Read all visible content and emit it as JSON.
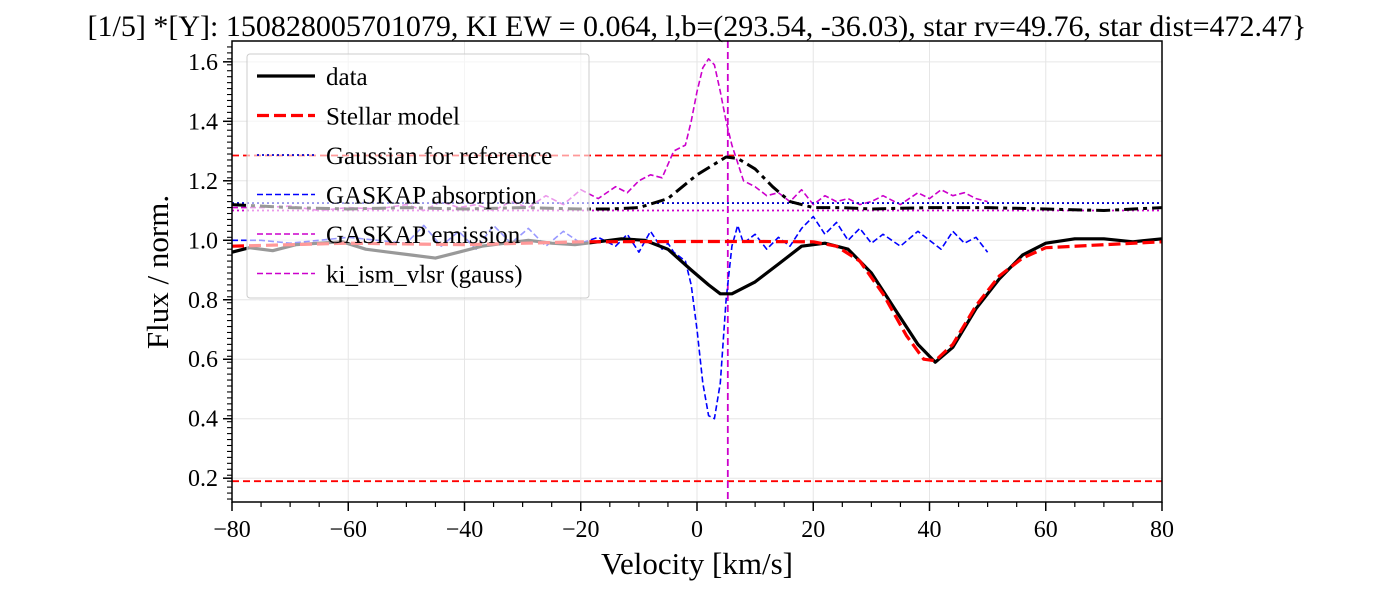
{
  "chart_data": {
    "type": "line",
    "title": "[1/5] *[Y]: 150828005701079, KI EW = 0.064, l,b=(293.54, -36.03), star rv=49.76, star dist=472.47}",
    "xlabel": "Velocity [km/s]",
    "ylabel": "Flux / norm.",
    "xlim": [
      -80,
      80
    ],
    "ylim": [
      0.12,
      1.67
    ],
    "xticks": [
      -80,
      -60,
      -40,
      -20,
      0,
      20,
      40,
      60,
      80
    ],
    "yticks": [
      0.2,
      0.4,
      0.6,
      0.8,
      1.0,
      1.2,
      1.4,
      1.6
    ],
    "xtick_labels": [
      "−80",
      "−60",
      "−40",
      "−20",
      "0",
      "20",
      "40",
      "60",
      "80"
    ],
    "ytick_labels": [
      "0.2",
      "0.4",
      "0.6",
      "0.8",
      "1.0",
      "1.2",
      "1.4",
      "1.6"
    ],
    "grid": true,
    "legend_position": "upper-left",
    "legend": [
      {
        "label": "data",
        "color": "#000000",
        "style": "solid"
      },
      {
        "label": "Stellar model",
        "color": "#ff0000",
        "style": "dashed"
      },
      {
        "label": "Gaussian for reference",
        "color": "#0000cc",
        "style": "dotted"
      },
      {
        "label": "GASKAP absorption",
        "color": "#0000ff",
        "style": "dashed"
      },
      {
        "label": "GASKAP emission",
        "color": "#cc00cc",
        "style": "dashed"
      },
      {
        "label": "ki_ism_vlsr (gauss)",
        "color": "#cc00cc",
        "style": "dashed"
      }
    ],
    "series": [
      {
        "name": "data",
        "color": "#000000",
        "x": [
          -80,
          -77,
          -73,
          -69,
          -65,
          -61,
          -57,
          -53,
          -49,
          -45,
          -41,
          -37,
          -33,
          -29,
          -25,
          -21,
          -17,
          -13,
          -9,
          -5,
          -1,
          2,
          4,
          6,
          10,
          14,
          18,
          22,
          26,
          30,
          34,
          38,
          41,
          44,
          48,
          52,
          56,
          60,
          65,
          70,
          75,
          80
        ],
        "y": [
          0.96,
          0.975,
          0.965,
          0.985,
          0.99,
          0.995,
          0.97,
          0.96,
          0.95,
          0.94,
          0.96,
          0.98,
          0.99,
          1.0,
          0.99,
          0.985,
          0.995,
          1.005,
          1.0,
          0.97,
          0.9,
          0.85,
          0.82,
          0.82,
          0.86,
          0.92,
          0.98,
          0.99,
          0.97,
          0.89,
          0.77,
          0.65,
          0.59,
          0.64,
          0.77,
          0.87,
          0.95,
          0.99,
          1.005,
          1.005,
          0.995,
          1.005
        ]
      },
      {
        "name": "Stellar model",
        "color": "#ff0000",
        "x": [
          -80,
          -60,
          -40,
          -20,
          0,
          10,
          20,
          24,
          28,
          32,
          36,
          39,
          41,
          44,
          48,
          52,
          56,
          60,
          70,
          80
        ],
        "y": [
          0.98,
          0.99,
          0.985,
          0.995,
          0.996,
          0.996,
          0.995,
          0.98,
          0.93,
          0.82,
          0.68,
          0.6,
          0.595,
          0.65,
          0.78,
          0.88,
          0.94,
          0.975,
          0.985,
          0.995
        ]
      },
      {
        "name": "Gaussian for reference",
        "color": "#0000cc",
        "x": [
          -80,
          80
        ],
        "y": [
          1.125,
          1.125
        ]
      },
      {
        "name": "GASKAP absorption",
        "color": "#0000ff",
        "x": [
          -80,
          -75,
          -70,
          -65,
          -60,
          -55,
          -50,
          -47,
          -44,
          -41,
          -38,
          -35,
          -32,
          -29,
          -26,
          -23,
          -20,
          -17,
          -14,
          -12,
          -10,
          -8,
          -6,
          -5,
          -4,
          -2,
          -1,
          0,
          1,
          2,
          3,
          4,
          5,
          6,
          7,
          8,
          10,
          12,
          14,
          16,
          18,
          20,
          22,
          24,
          26,
          28,
          30,
          32,
          35,
          38,
          40,
          42,
          44,
          46,
          48,
          50
        ],
        "y": [
          1.0,
          1.0,
          0.99,
          1.0,
          1.01,
          1.0,
          0.99,
          1.05,
          0.98,
          1.03,
          0.97,
          1.05,
          0.99,
          1.04,
          0.98,
          1.03,
          0.99,
          1.01,
          0.98,
          1.02,
          0.96,
          1.03,
          0.97,
          0.99,
          0.96,
          0.93,
          0.85,
          0.7,
          0.52,
          0.41,
          0.4,
          0.52,
          0.8,
          0.98,
          1.05,
          0.99,
          1.02,
          0.97,
          1.01,
          0.98,
          1.04,
          1.08,
          1.02,
          1.06,
          1.0,
          1.04,
          0.99,
          1.02,
          0.98,
          1.03,
          1.0,
          0.97,
          1.03,
          0.99,
          1.01,
          0.96
        ]
      },
      {
        "name": "GASKAP emission",
        "color": "#cc00cc",
        "x": [
          -80,
          -75,
          -70,
          -65,
          -60,
          -55,
          -50,
          -47,
          -44,
          -41,
          -38,
          -35,
          -32,
          -29,
          -26,
          -23,
          -20,
          -17,
          -14,
          -12,
          -10,
          -8,
          -6,
          -4,
          -2,
          -1,
          0,
          1,
          2,
          3,
          4,
          5,
          6,
          7,
          8,
          10,
          12,
          14,
          16,
          18,
          20,
          22,
          24,
          26,
          28,
          30,
          32,
          35,
          38,
          40,
          42,
          44,
          46,
          48,
          50
        ],
        "y": [
          1.11,
          1.11,
          1.115,
          1.1,
          1.11,
          1.105,
          1.12,
          1.1,
          1.13,
          1.11,
          1.12,
          1.1,
          1.13,
          1.11,
          1.15,
          1.12,
          1.17,
          1.14,
          1.18,
          1.16,
          1.2,
          1.22,
          1.21,
          1.3,
          1.32,
          1.4,
          1.5,
          1.58,
          1.61,
          1.59,
          1.5,
          1.4,
          1.32,
          1.26,
          1.2,
          1.18,
          1.15,
          1.16,
          1.13,
          1.17,
          1.12,
          1.15,
          1.13,
          1.14,
          1.12,
          1.13,
          1.15,
          1.12,
          1.16,
          1.14,
          1.17,
          1.15,
          1.16,
          1.14,
          1.13
        ]
      },
      {
        "name": "Gaussian dash-dot",
        "color": "#000000",
        "x": [
          -80,
          -70,
          -60,
          -50,
          -40,
          -30,
          -20,
          -15,
          -10,
          -5,
          0,
          5,
          7,
          10,
          13,
          16,
          20,
          25,
          30,
          40,
          50,
          60,
          70,
          80
        ],
        "y": [
          1.12,
          1.11,
          1.105,
          1.11,
          1.105,
          1.11,
          1.105,
          1.105,
          1.11,
          1.14,
          1.22,
          1.28,
          1.275,
          1.24,
          1.18,
          1.13,
          1.11,
          1.11,
          1.105,
          1.11,
          1.11,
          1.105,
          1.1,
          1.11
        ]
      }
    ],
    "hlines": [
      {
        "y": 1.285,
        "color": "#ff0000",
        "style": "dashed"
      },
      {
        "y": 0.19,
        "color": "#ff0000",
        "style": "dashed"
      },
      {
        "y": 1.125,
        "color": "#0000cc",
        "style": "dotted"
      },
      {
        "y": 1.1,
        "color": "#cc00cc",
        "style": "dotted"
      }
    ],
    "vlines": [
      {
        "x": 5.3,
        "color": "#cc00cc",
        "style": "dashed"
      }
    ]
  }
}
